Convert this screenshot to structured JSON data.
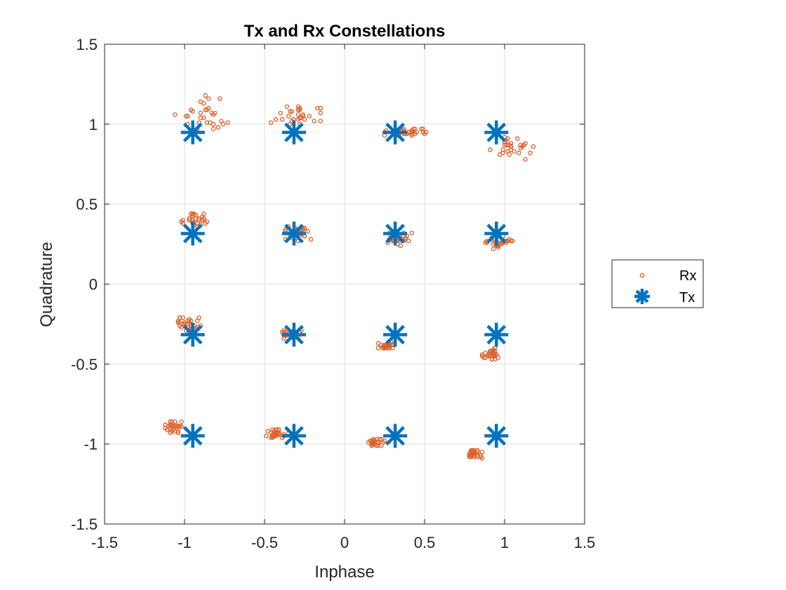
{
  "chart_data": {
    "type": "scatter",
    "title": "Tx and Rx Constellations",
    "xlabel": "Inphase",
    "ylabel": "Quadrature",
    "xlim": [
      -1.5,
      1.5
    ],
    "ylim": [
      -1.5,
      1.5
    ],
    "xticks": [
      -1.5,
      -1,
      -0.5,
      0,
      0.5,
      1,
      1.5
    ],
    "yticks": [
      -1.5,
      -1,
      -0.5,
      0,
      0.5,
      1,
      1.5
    ],
    "xtick_labels": [
      "-1.5",
      "-1",
      "-0.5",
      "0",
      "0.5",
      "1",
      "1.5"
    ],
    "ytick_labels": [
      "-1.5",
      "-1",
      "-0.5",
      "0",
      "0.5",
      "1",
      "1.5"
    ],
    "grid": true,
    "legend_position": "outside-right",
    "series": [
      {
        "name": "Rx",
        "marker": "open-circle",
        "color": "#D95319",
        "x": [
          -0.82,
          -0.95,
          -0.78,
          -0.85,
          -0.99,
          -0.9,
          -0.92,
          -0.86,
          -0.87,
          -0.83,
          -0.9,
          -0.98,
          -0.98,
          -0.88,
          -0.88,
          -0.96,
          -0.91,
          -0.73,
          -1.06,
          -0.9,
          -0.82,
          -0.81,
          -0.86,
          -0.77,
          -0.85,
          -0.84,
          -0.76,
          -0.87,
          -0.79,
          -0.82,
          -0.32,
          -0.34,
          -0.46,
          -0.29,
          -0.43,
          -0.28,
          -0.34,
          -0.29,
          -0.28,
          -0.39,
          -0.19,
          -0.4,
          -0.26,
          -0.15,
          -0.27,
          -0.35,
          -0.15,
          -0.36,
          -0.28,
          -0.17,
          -0.26,
          -0.29,
          -0.33,
          -0.33,
          -0.29,
          -0.25,
          -0.15,
          -0.22,
          -0.29,
          -0.28,
          0.42,
          0.45,
          0.33,
          0.42,
          0.48,
          0.33,
          0.42,
          0.49,
          0.38,
          0.26,
          0.33,
          0.43,
          0.37,
          0.49,
          0.36,
          0.25,
          0.39,
          0.32,
          0.4,
          0.37,
          0.42,
          0.4,
          0.44,
          0.25,
          0.43,
          0.44,
          0.51,
          0.34,
          0.5,
          0.37,
          1.0,
          1.09,
          1.0,
          1.02,
          1.02,
          1.06,
          1.11,
          1.04,
          1.04,
          0.99,
          1.03,
          1.18,
          1.04,
          1.13,
          1.12,
          1.01,
          1.0,
          0.99,
          0.91,
          1.04,
          1.02,
          0.97,
          1.13,
          1.02,
          1.16,
          1.1,
          1.08,
          1.1,
          1.01,
          1.03,
          -0.94,
          -0.9,
          -0.97,
          -0.97,
          -0.88,
          -0.95,
          -0.95,
          -0.94,
          -0.86,
          -0.89,
          -0.91,
          -0.95,
          -0.88,
          -0.89,
          -1.02,
          -1.01,
          -0.93,
          -0.87,
          -0.95,
          -0.95,
          -0.96,
          -0.89,
          -0.91,
          -0.92,
          -1.01,
          -0.88,
          -0.92,
          -0.94,
          -0.97,
          -0.93,
          -0.35,
          -0.3,
          -0.3,
          -0.25,
          -0.27,
          -0.25,
          -0.3,
          -0.26,
          -0.37,
          -0.3,
          -0.33,
          -0.28,
          -0.26,
          -0.21,
          -0.31,
          -0.27,
          -0.34,
          -0.25,
          -0.3,
          -0.27,
          -0.31,
          -0.34,
          -0.33,
          -0.28,
          -0.37,
          -0.37,
          -0.29,
          -0.28,
          -0.29,
          -0.23,
          0.34,
          0.28,
          0.35,
          0.37,
          0.36,
          0.3,
          0.38,
          0.29,
          0.42,
          0.27,
          0.37,
          0.33,
          0.28,
          0.38,
          0.31,
          0.3,
          0.34,
          0.36,
          0.36,
          0.3,
          0.32,
          0.3,
          0.39,
          0.29,
          0.33,
          0.33,
          0.35,
          0.28,
          0.33,
          0.4,
          0.96,
          0.89,
          0.99,
          1.03,
          0.95,
          0.96,
          0.98,
          1.04,
          0.95,
          0.99,
          0.95,
          0.88,
          0.98,
          1.02,
          0.92,
          0.96,
          0.89,
          0.96,
          0.93,
          0.99,
          0.99,
          0.95,
          1.01,
          0.96,
          1.05,
          0.93,
          0.92,
          0.94,
          1.0,
          1.01,
          -1.03,
          -1.02,
          -0.92,
          -0.92,
          -0.97,
          -0.92,
          -0.96,
          -0.96,
          -1.03,
          -0.95,
          -0.9,
          -0.96,
          -1.01,
          -1.01,
          -1.0,
          -0.99,
          -0.97,
          -1.0,
          -0.94,
          -1.03,
          -1.04,
          -0.95,
          -1.03,
          -0.98,
          -0.91,
          -0.98,
          -0.97,
          -1.04,
          -0.96,
          -0.94,
          -0.31,
          -0.38,
          -0.37,
          -0.39,
          -0.32,
          -0.35,
          -0.38,
          -0.36,
          -0.33,
          -0.32,
          -0.37,
          -0.32,
          -0.31,
          -0.32,
          -0.32,
          -0.37,
          -0.32,
          -0.3,
          -0.31,
          -0.34,
          -0.38,
          -0.33,
          -0.31,
          -0.38,
          -0.3,
          -0.29,
          -0.27,
          -0.28,
          -0.34,
          -0.32,
          0.28,
          0.26,
          0.26,
          0.21,
          0.25,
          0.27,
          0.28,
          0.26,
          0.28,
          0.24,
          0.25,
          0.3,
          0.3,
          0.26,
          0.28,
          0.21,
          0.26,
          0.25,
          0.28,
          0.26,
          0.28,
          0.25,
          0.23,
          0.28,
          0.29,
          0.31,
          0.27,
          0.27,
          0.24,
          0.27,
          0.91,
          0.88,
          0.93,
          0.93,
          0.95,
          0.93,
          0.93,
          0.87,
          0.93,
          0.9,
          0.94,
          0.96,
          0.92,
          0.93,
          0.86,
          0.91,
          0.86,
          0.94,
          0.94,
          0.94,
          0.88,
          0.92,
          0.91,
          0.91,
          0.91,
          0.93,
          0.9,
          0.92,
          0.91,
          0.94,
          -1.07,
          -1.07,
          -1.04,
          -1.06,
          -1.11,
          -1.03,
          -1.04,
          -1.05,
          -1.12,
          -1.02,
          -1.09,
          -1.12,
          -1.08,
          -1.05,
          -1.09,
          -1.07,
          -1.04,
          -1.09,
          -1.1,
          -1.09,
          -1.05,
          -1.08,
          -1.08,
          -1.03,
          -1.06,
          -1.02,
          -1.09,
          -1.08,
          -1.12,
          -1.04,
          -0.46,
          -0.41,
          -0.44,
          -0.42,
          -0.39,
          -0.43,
          -0.41,
          -0.49,
          -0.41,
          -0.45,
          -0.35,
          -0.43,
          -0.45,
          -0.42,
          -0.38,
          -0.43,
          -0.45,
          -0.38,
          -0.45,
          -0.45,
          -0.46,
          -0.43,
          -0.48,
          -0.41,
          -0.44,
          -0.42,
          -0.41,
          -0.44,
          -0.44,
          -0.45,
          0.18,
          0.18,
          0.16,
          0.21,
          0.21,
          0.2,
          0.18,
          0.25,
          0.17,
          0.17,
          0.23,
          0.2,
          0.17,
          0.2,
          0.17,
          0.23,
          0.18,
          0.24,
          0.17,
          0.17,
          0.22,
          0.18,
          0.21,
          0.18,
          0.17,
          0.21,
          0.19,
          0.15,
          0.19,
          0.18,
          0.8,
          0.86,
          0.78,
          0.85,
          0.83,
          0.79,
          0.81,
          0.78,
          0.83,
          0.81,
          0.8,
          0.85,
          0.81,
          0.83,
          0.79,
          0.79,
          0.79,
          0.8,
          0.83,
          0.81,
          0.86,
          0.8,
          0.81,
          0.83,
          0.79,
          0.83,
          0.8,
          0.81,
          0.79,
          0.78
        ],
        "y": [
          1.0,
          1.08,
          1.16,
          1.1,
          1.05,
          1.07,
          0.97,
          1.09,
          1.09,
          1.07,
          1.04,
          1.0,
          1.05,
          1.13,
          1.04,
          1.09,
          1.01,
          1.01,
          1.06,
          1.14,
          1.06,
          1.07,
          1.01,
          1.02,
          1.16,
          1.01,
          1.0,
          1.18,
          0.98,
          0.97,
          1.03,
          1.08,
          1.01,
          1.06,
          1.03,
          1.0,
          1.0,
          1.09,
          1.09,
          1.03,
          1.02,
          1.07,
          1.06,
          1.02,
          1.04,
          1.05,
          1.07,
          1.11,
          1.04,
          1.1,
          1.05,
          1.03,
          1.02,
          1.08,
          1.09,
          1.03,
          1.1,
          1.05,
          1.11,
          1.1,
          0.93,
          0.95,
          0.96,
          0.95,
          0.97,
          0.93,
          0.96,
          0.95,
          0.94,
          0.96,
          0.96,
          0.97,
          0.94,
          0.97,
          0.96,
          0.95,
          0.94,
          0.93,
          0.95,
          0.96,
          0.94,
          0.95,
          0.97,
          0.93,
          0.95,
          0.94,
          0.95,
          0.93,
          0.94,
          0.97,
          0.92,
          0.82,
          0.89,
          0.91,
          0.87,
          0.83,
          0.86,
          0.84,
          0.86,
          0.84,
          0.81,
          0.86,
          0.86,
          0.88,
          0.87,
          0.9,
          0.87,
          0.82,
          0.84,
          0.88,
          0.83,
          0.81,
          0.78,
          0.83,
          0.82,
          0.87,
          0.91,
          0.85,
          0.87,
          0.87,
          0.44,
          0.37,
          0.41,
          0.4,
          0.41,
          0.38,
          0.39,
          0.38,
          0.39,
          0.42,
          0.4,
          0.4,
          0.44,
          0.4,
          0.39,
          0.38,
          0.43,
          0.38,
          0.44,
          0.43,
          0.44,
          0.4,
          0.41,
          0.36,
          0.4,
          0.41,
          0.38,
          0.37,
          0.41,
          0.41,
          0.36,
          0.33,
          0.32,
          0.3,
          0.34,
          0.35,
          0.34,
          0.35,
          0.33,
          0.31,
          0.29,
          0.32,
          0.34,
          0.28,
          0.35,
          0.35,
          0.3,
          0.3,
          0.29,
          0.31,
          0.33,
          0.32,
          0.31,
          0.33,
          0.28,
          0.34,
          0.27,
          0.31,
          0.33,
          0.33,
          0.28,
          0.28,
          0.31,
          0.32,
          0.28,
          0.28,
          0.29,
          0.29,
          0.32,
          0.26,
          0.27,
          0.27,
          0.28,
          0.28,
          0.27,
          0.27,
          0.3,
          0.28,
          0.27,
          0.3,
          0.31,
          0.31,
          0.3,
          0.3,
          0.25,
          0.27,
          0.24,
          0.32,
          0.28,
          0.27,
          0.3,
          0.26,
          0.3,
          0.28,
          0.27,
          0.24,
          0.25,
          0.27,
          0.24,
          0.26,
          0.25,
          0.26,
          0.26,
          0.27,
          0.28,
          0.25,
          0.27,
          0.23,
          0.25,
          0.26,
          0.27,
          0.24,
          0.26,
          0.24,
          0.27,
          0.22,
          0.29,
          0.26,
          0.27,
          0.27,
          -0.24,
          -0.27,
          -0.23,
          -0.28,
          -0.24,
          -0.27,
          -0.28,
          -0.26,
          -0.21,
          -0.3,
          -0.26,
          -0.27,
          -0.21,
          -0.25,
          -0.24,
          -0.29,
          -0.22,
          -0.25,
          -0.26,
          -0.26,
          -0.24,
          -0.28,
          -0.21,
          -0.23,
          -0.21,
          -0.25,
          -0.3,
          -0.23,
          -0.23,
          -0.28,
          -0.3,
          -0.29,
          -0.31,
          -0.3,
          -0.32,
          -0.31,
          -0.3,
          -0.32,
          -0.3,
          -0.3,
          -0.32,
          -0.3,
          -0.3,
          -0.32,
          -0.34,
          -0.3,
          -0.29,
          -0.3,
          -0.3,
          -0.31,
          -0.34,
          -0.33,
          -0.31,
          -0.32,
          -0.32,
          -0.33,
          -0.29,
          -0.3,
          -0.32,
          -0.32,
          -0.37,
          -0.4,
          -0.38,
          -0.4,
          -0.4,
          -0.39,
          -0.38,
          -0.39,
          -0.4,
          -0.4,
          -0.38,
          -0.4,
          -0.38,
          -0.39,
          -0.37,
          -0.37,
          -0.39,
          -0.4,
          -0.39,
          -0.38,
          -0.39,
          -0.39,
          -0.38,
          -0.4,
          -0.36,
          -0.38,
          -0.37,
          -0.39,
          -0.39,
          -0.38,
          -0.43,
          -0.46,
          -0.42,
          -0.44,
          -0.44,
          -0.41,
          -0.41,
          -0.46,
          -0.44,
          -0.44,
          -0.45,
          -0.46,
          -0.47,
          -0.45,
          -0.45,
          -0.42,
          -0.44,
          -0.4,
          -0.47,
          -0.42,
          -0.43,
          -0.42,
          -0.42,
          -0.45,
          -0.42,
          -0.43,
          -0.45,
          -0.47,
          -0.45,
          -0.44,
          -0.91,
          -0.89,
          -0.92,
          -0.86,
          -0.91,
          -0.89,
          -0.89,
          -0.89,
          -0.88,
          -0.86,
          -0.86,
          -0.9,
          -0.86,
          -0.88,
          -0.88,
          -0.89,
          -0.89,
          -0.9,
          -0.89,
          -0.88,
          -0.89,
          -0.89,
          -0.88,
          -0.89,
          -0.92,
          -0.89,
          -0.93,
          -0.92,
          -0.88,
          -0.93,
          -0.93,
          -0.94,
          -0.94,
          -0.91,
          -0.96,
          -0.94,
          -0.93,
          -0.95,
          -0.91,
          -0.94,
          -0.93,
          -0.95,
          -0.95,
          -0.94,
          -0.94,
          -0.91,
          -0.96,
          -0.95,
          -0.91,
          -0.95,
          -0.96,
          -0.93,
          -0.92,
          -0.94,
          -0.94,
          -0.93,
          -0.94,
          -0.92,
          -0.95,
          -0.95,
          -0.99,
          -1.0,
          -0.98,
          -0.99,
          -0.99,
          -1.01,
          -0.99,
          -0.98,
          -1.0,
          -0.99,
          -0.97,
          -0.99,
          -1.01,
          -0.97,
          -0.99,
          -1.01,
          -0.97,
          -0.99,
          -1.01,
          -1.0,
          -0.97,
          -0.99,
          -0.99,
          -1.0,
          -0.98,
          -1.01,
          -0.98,
          -0.99,
          -1.0,
          -0.98,
          -1.05,
          -1.09,
          -1.06,
          -1.08,
          -1.04,
          -1.05,
          -1.07,
          -1.08,
          -1.05,
          -1.05,
          -1.04,
          -1.07,
          -1.06,
          -1.04,
          -1.07,
          -1.08,
          -1.05,
          -1.07,
          -1.08,
          -1.04,
          -1.05,
          -1.05,
          -1.05,
          -1.07,
          -1.08,
          -1.04,
          -1.04,
          -1.08,
          -1.04,
          -1.07
        ]
      },
      {
        "name": "Tx",
        "marker": "asterisk",
        "color": "#0072BD",
        "x": [
          -0.9487,
          -0.3162,
          0.3162,
          0.9487,
          -0.9487,
          -0.3162,
          0.3162,
          0.9487,
          -0.9487,
          -0.3162,
          0.3162,
          0.9487,
          -0.9487,
          -0.3162,
          0.3162,
          0.9487
        ],
        "y": [
          0.9487,
          0.9487,
          0.9487,
          0.9487,
          0.3162,
          0.3162,
          0.3162,
          0.3162,
          -0.3162,
          -0.3162,
          -0.3162,
          -0.3162,
          -0.9487,
          -0.9487,
          -0.9487,
          -0.9487
        ]
      }
    ]
  }
}
